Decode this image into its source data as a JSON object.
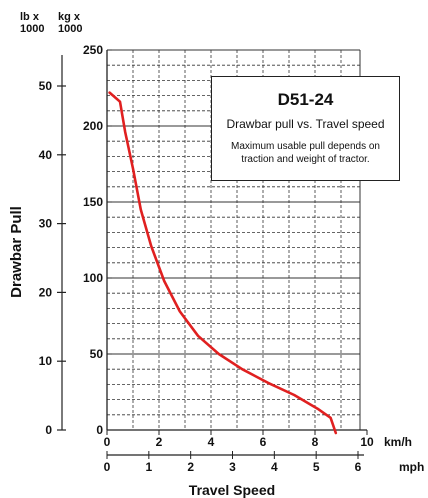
{
  "chart_data": {
    "type": "line",
    "title": "D51-24",
    "subtitle": "Drawbar pull vs. Travel speed",
    "annotation": "Maximum usable pull depends on traction and weight of tractor.",
    "ylabel": "Drawbar Pull",
    "xlabel": "Travel Speed",
    "units": {
      "y_left_unit": [
        "lb x",
        "1000"
      ],
      "y_right_unit": [
        "kg x",
        "1000"
      ],
      "x_kmh_unit": "km/h",
      "x_mph_unit": "mph"
    },
    "x_kmh_ticks": [
      "0",
      "2",
      "4",
      "6",
      "8",
      "10"
    ],
    "x_mph_ticks": [
      "0",
      "1",
      "2",
      "3",
      "4",
      "5",
      "6"
    ],
    "y_kg_ticks": [
      "0",
      "10",
      "20",
      "30",
      "40",
      "50"
    ],
    "y_lb_ticks": [
      "0",
      "50",
      "100",
      "150",
      "200",
      "250"
    ],
    "xlim_kmh": [
      0,
      10
    ],
    "ylim_lb": [
      0,
      250
    ],
    "grid": true,
    "series": [
      {
        "color": "#e02020",
        "x": [
          0.1,
          0.5,
          0.7,
          1.0,
          1.3,
          1.7,
          2.2,
          2.8,
          3.5,
          4.3,
          5.2,
          6.2,
          7.2,
          8.1,
          8.6,
          8.8
        ],
        "y": [
          222,
          216,
          196,
          172,
          145,
          121,
          98,
          78,
          62,
          50,
          40,
          31,
          23,
          14,
          8,
          -2
        ]
      }
    ],
    "colors": {
      "curve": "#e02020",
      "axis": "#222222",
      "grid": "#333333"
    }
  }
}
